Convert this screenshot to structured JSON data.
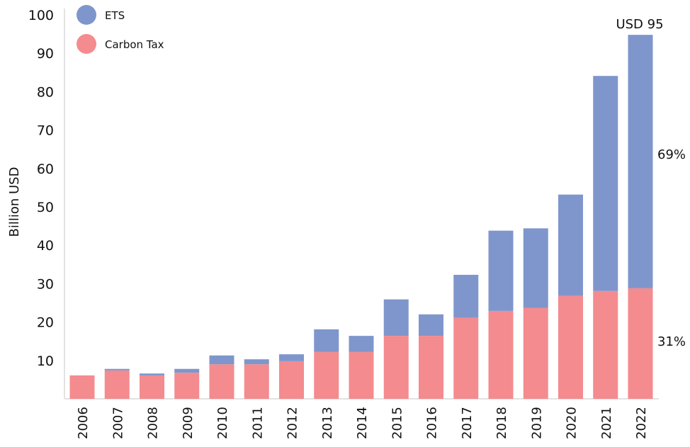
{
  "chart_data": {
    "type": "bar",
    "stacked": true,
    "ylabel": "Billion USD",
    "xlabel": "",
    "ylim": [
      0,
      100
    ],
    "yticks": [
      10,
      20,
      30,
      40,
      50,
      60,
      70,
      80,
      90,
      100
    ],
    "grid": false,
    "legend_position": "top-left",
    "categories": [
      "2006",
      "2007",
      "2008",
      "2009",
      "2010",
      "2011",
      "2012",
      "2013",
      "2014",
      "2015",
      "2016",
      "2017",
      "2018",
      "2019",
      "2020",
      "2021",
      "2022"
    ],
    "series": [
      {
        "name": "Carbon Tax",
        "color": "#f48b8e",
        "values": [
          6.1,
          7.4,
          6.1,
          6.8,
          9.0,
          9.0,
          9.8,
          12.2,
          12.2,
          16.4,
          16.4,
          21.1,
          22.9,
          23.7,
          26.8,
          28.1,
          28.8
        ]
      },
      {
        "name": "ETS",
        "color": "#7f96cc",
        "values": [
          0,
          0.4,
          0.5,
          1.0,
          2.3,
          1.3,
          1.8,
          5.9,
          4.2,
          9.5,
          5.6,
          11.2,
          20.9,
          20.7,
          26.4,
          56.0,
          66.0
        ]
      }
    ],
    "annotations": {
      "total": "USD 95",
      "ets_share": "69%",
      "tax_share": "31%"
    }
  }
}
